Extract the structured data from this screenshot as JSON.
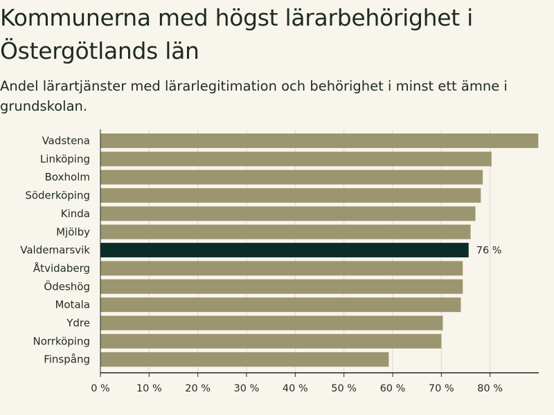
{
  "title": "Kommunerna med högst lärarbehörighet i Östergötlands län",
  "subtitle": "Andel lärartjänster med lärarlegitimation och behörighet i minst ett ämne i grundskolan.",
  "colors": {
    "bar": "#9c9670",
    "highlight": "#0b2c28",
    "grid": "#e2ddd0",
    "axis": "#1e2a24"
  },
  "chart_data": {
    "type": "bar",
    "orientation": "horizontal",
    "categories": [
      "Vadstena",
      "Linköping",
      "Boxholm",
      "Söderköping",
      "Kinda",
      "Mjölby",
      "Valdemarsvik",
      "Åtvidaberg",
      "Ödeshög",
      "Motala",
      "Ydre",
      "Norrköping",
      "Finspång"
    ],
    "values": [
      89.9,
      80.3,
      78.5,
      78.1,
      77.0,
      76.0,
      75.6,
      74.4,
      74.4,
      74.0,
      70.3,
      70.0,
      59.2
    ],
    "highlight_index": 6,
    "data_labels": [
      {
        "index": 6,
        "text": "76 %"
      }
    ],
    "xlim": [
      0,
      90
    ],
    "xticks": [
      0,
      10,
      20,
      30,
      40,
      50,
      60,
      70,
      80
    ],
    "tick_labels": [
      "0 %",
      "10 %",
      "20 %",
      "30 %",
      "40 %",
      "50 %",
      "60 %",
      "70 %",
      "80 %"
    ],
    "grid": true,
    "xlabel": "",
    "ylabel": ""
  }
}
